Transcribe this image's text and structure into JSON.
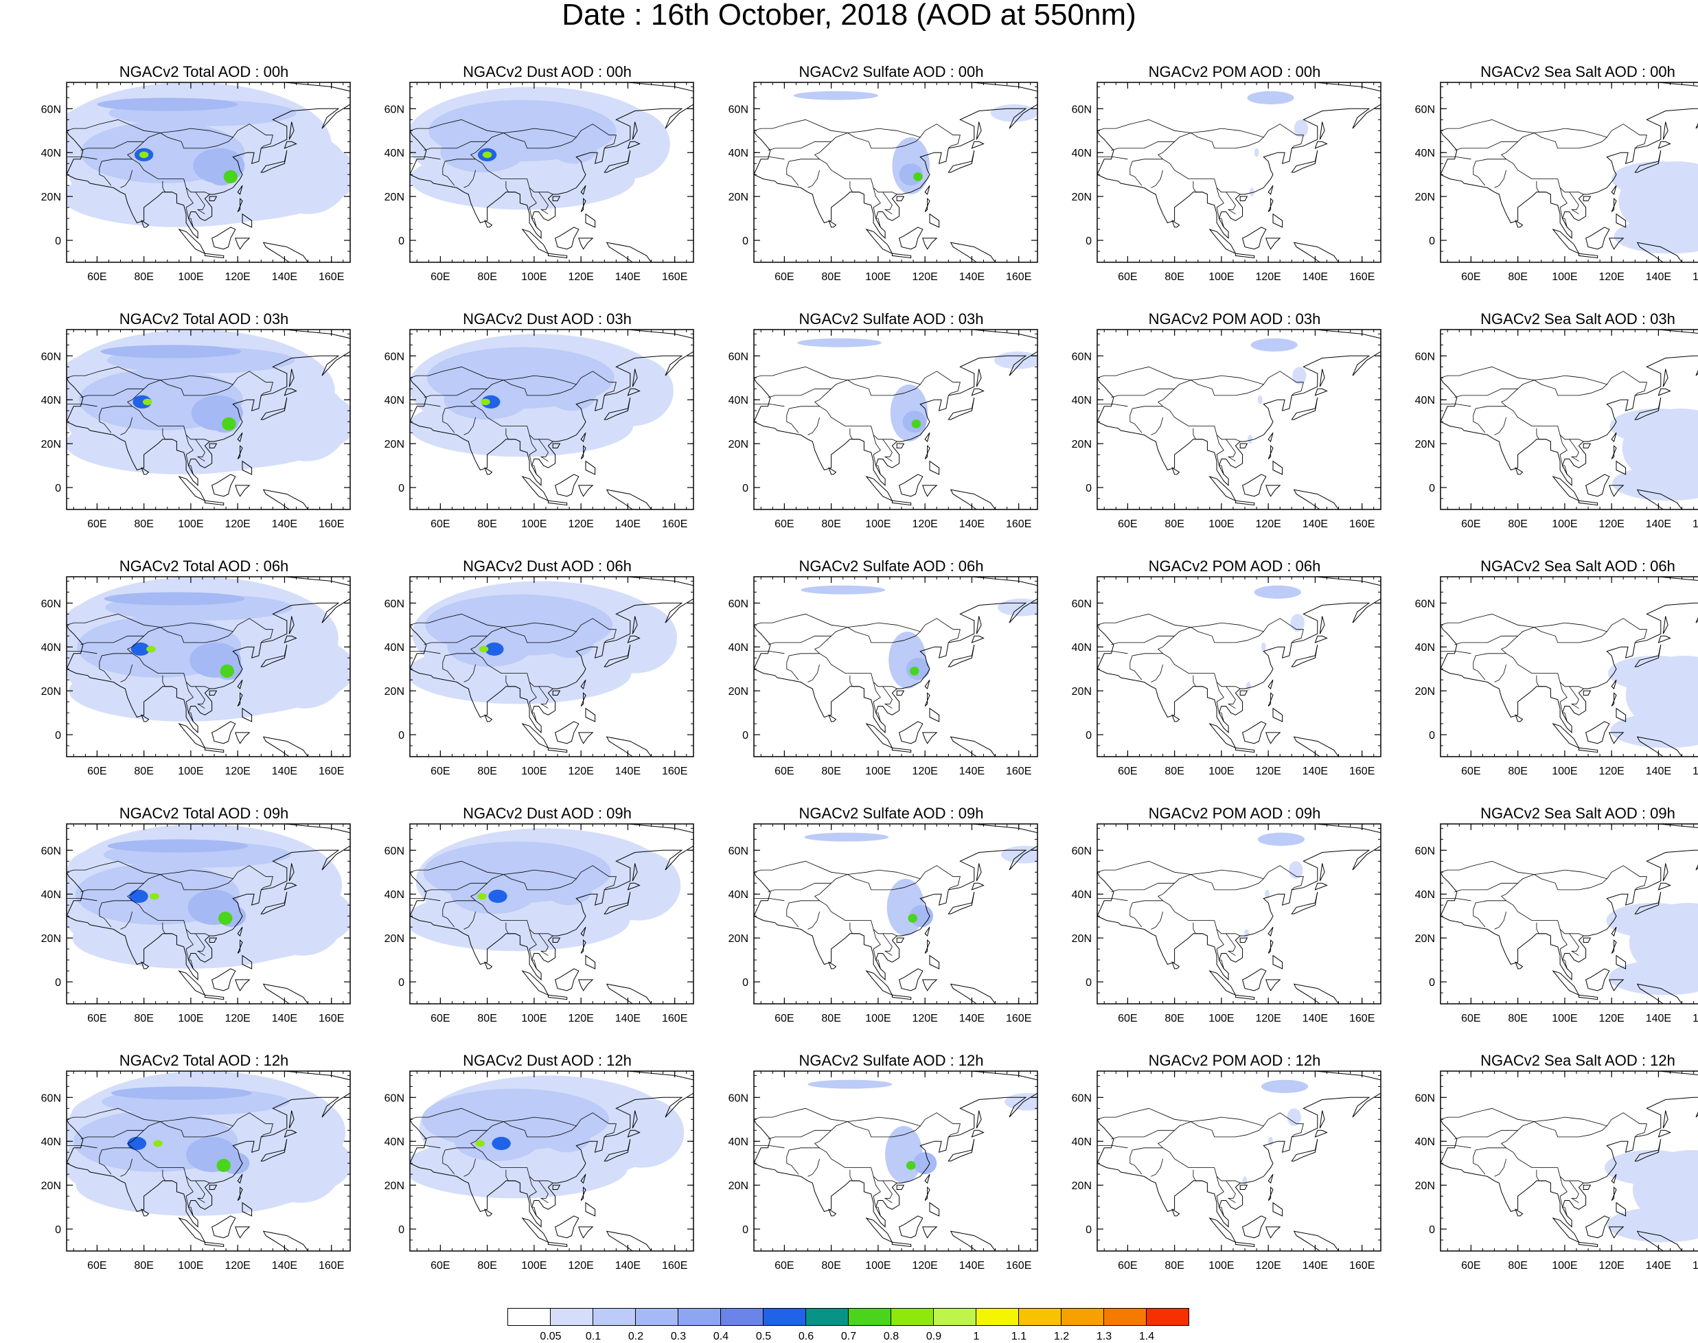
{
  "title": "Date : 16th October, 2018 (AOD at 550nm)",
  "axes": {
    "x_ticks": [
      "60E",
      "80E",
      "100E",
      "120E",
      "140E",
      "160E"
    ],
    "y_ticks": [
      "60N",
      "40N",
      "20N",
      "0"
    ],
    "lon_range": [
      47,
      168
    ],
    "lat_range": [
      -10,
      72
    ]
  },
  "colorbar": {
    "labels": [
      "0.05",
      "0.1",
      "0.2",
      "0.3",
      "0.4",
      "0.5",
      "0.6",
      "0.7",
      "0.8",
      "0.9",
      "1",
      "1.1",
      "1.2",
      "1.3",
      "1.4"
    ],
    "colors": [
      "#ffffff",
      "#d4defa",
      "#bccbf7",
      "#a5b9f4",
      "#8da6f1",
      "#6b84ea",
      "#2063e8",
      "#079486",
      "#4ad41c",
      "#8ee80c",
      "#bdf54a",
      "#f5f500",
      "#f7c300",
      "#f7a000",
      "#f77a00",
      "#f73000"
    ]
  },
  "panels": [
    [
      "NGACv2 Total AOD : 00h",
      "NGACv2 Dust AOD : 00h",
      "NGACv2 Sulfate AOD : 00h",
      "NGACv2 POM AOD : 00h",
      "NGACv2 Sea Salt AOD : 00h"
    ],
    [
      "NGACv2 Total AOD : 03h",
      "NGACv2 Dust AOD : 03h",
      "NGACv2 Sulfate AOD : 03h",
      "NGACv2 POM AOD : 03h",
      "NGACv2 Sea Salt AOD : 03h"
    ],
    [
      "NGACv2 Total AOD : 06h",
      "NGACv2 Dust AOD : 06h",
      "NGACv2 Sulfate AOD : 06h",
      "NGACv2 POM AOD : 06h",
      "NGACv2 Sea Salt AOD : 06h"
    ],
    [
      "NGACv2 Total AOD : 09h",
      "NGACv2 Dust AOD : 09h",
      "NGACv2 Sulfate AOD : 09h",
      "NGACv2 POM AOD : 09h",
      "NGACv2 Sea Salt  AOD : 09h"
    ],
    [
      "NGACv2 Total AOD  : 12h",
      "NGACv2 Dust AOD : 12h",
      "NGACv2 Sulfate AOD : 12h",
      "NGACv2 POM  AOD : 12h",
      "NGACv2 Sea Salt  AOD : 12h"
    ]
  ]
}
